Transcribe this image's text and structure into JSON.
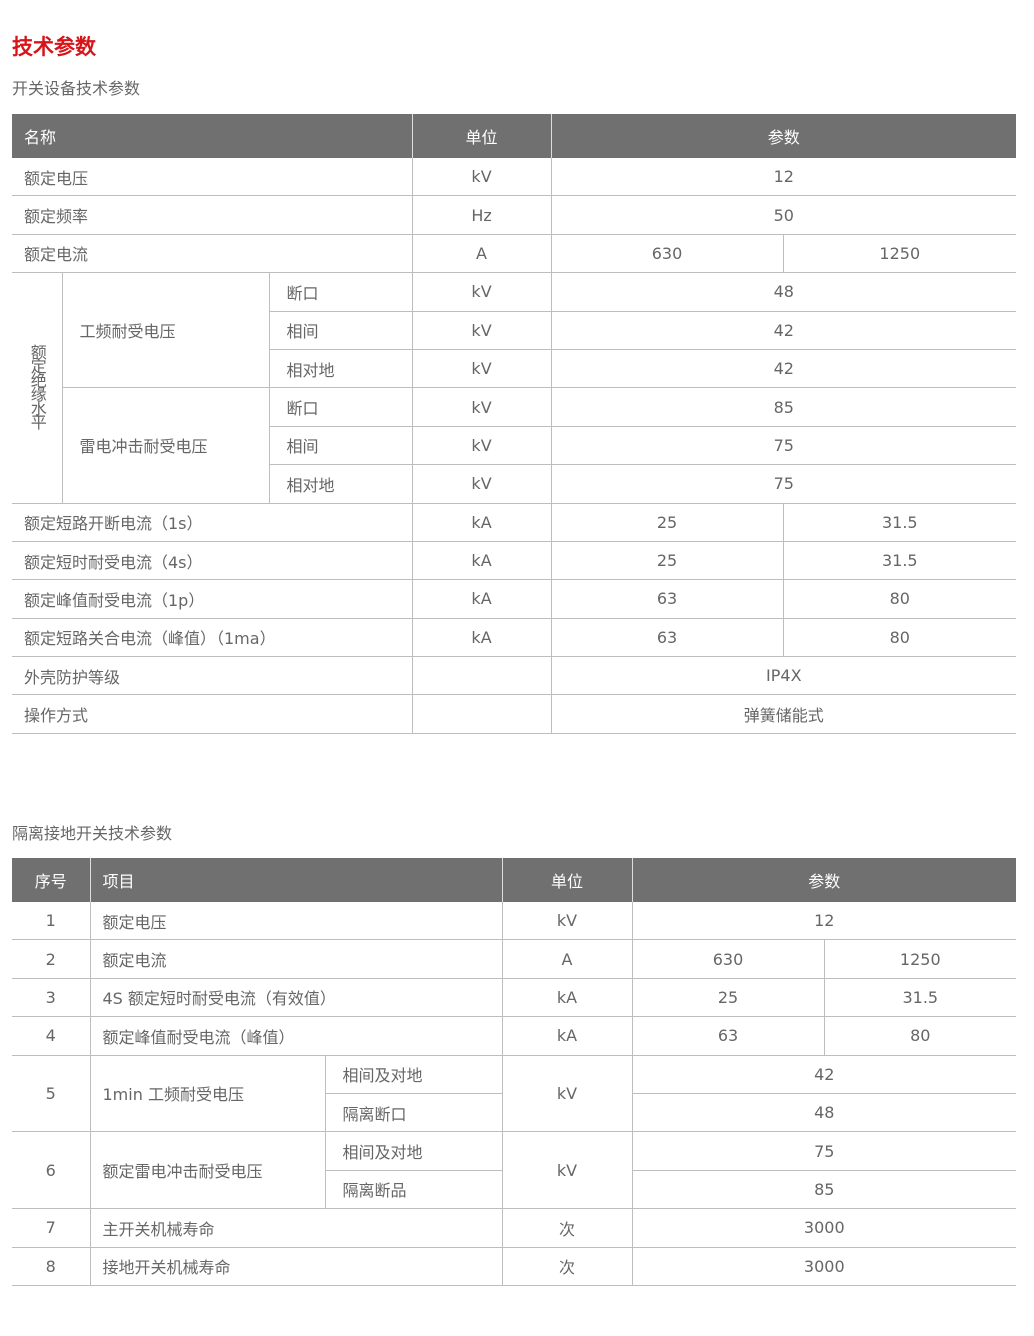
{
  "title": "技术参数",
  "t1": {
    "caption": "开关设备技术参数",
    "headers": [
      "名称",
      "单位",
      "参数"
    ],
    "rows": [
      {
        "name": "额定电压",
        "unit": "kV",
        "v": "12"
      },
      {
        "name": "额定频率",
        "unit": "Hz",
        "v": "50"
      },
      {
        "name": "额定电流",
        "unit": "A",
        "v1": "630",
        "v2": "1250"
      }
    ],
    "ins": {
      "group": "额定绝缘水平",
      "pf": "工频耐受电压",
      "li": "雷电冲击耐受电压",
      "rows": [
        {
          "sub": "断口",
          "unit": "kV",
          "v": "48"
        },
        {
          "sub": "相间",
          "unit": "kV",
          "v": "42"
        },
        {
          "sub": "相对地",
          "unit": "kV",
          "v": "42"
        },
        {
          "sub": "断口",
          "unit": "kV",
          "v": "85"
        },
        {
          "sub": "相间",
          "unit": "kV",
          "v": "75"
        },
        {
          "sub": "相对地",
          "unit": "kV",
          "v": "75"
        }
      ]
    },
    "rows2": [
      {
        "name": "额定短路开断电流（1s）",
        "unit": "kA",
        "v1": "25",
        "v2": "31.5"
      },
      {
        "name": "额定短时耐受电流（4s）",
        "unit": "kA",
        "v1": "25",
        "v2": "31.5"
      },
      {
        "name": "额定峰值耐受电流（1p）",
        "unit": "kA",
        "v1": "63",
        "v2": "80"
      },
      {
        "name": "额定短路关合电流（峰值）（1ma）",
        "unit": "kA",
        "v1": "63",
        "v2": "80"
      },
      {
        "name": "外壳防护等级",
        "unit": "",
        "v": "IP4X"
      },
      {
        "name": "操作方式",
        "unit": "",
        "v": "弹簧储能式"
      }
    ]
  },
  "t2": {
    "caption": "隔离接地开关技术参数",
    "headers": [
      "序号",
      "项目",
      "单位",
      "参数"
    ],
    "rows": [
      {
        "no": "1",
        "item": "额定电压",
        "unit": "kV",
        "v": "12"
      },
      {
        "no": "2",
        "item": "额定电流",
        "unit": "A",
        "v1": "630",
        "v2": "1250"
      },
      {
        "no": "3",
        "item": "4S 额定短时耐受电流（有效值）",
        "unit": "kA",
        "v1": "25",
        "v2": "31.5"
      },
      {
        "no": "4",
        "item": "额定峰值耐受电流（峰值）",
        "unit": "kA",
        "v1": "63",
        "v2": "80"
      },
      {
        "no": "5",
        "item": "1min 工频耐受电压",
        "unit": "kV",
        "s1": "相间及对地",
        "a": "42",
        "s2": "隔离断口",
        "b": "48"
      },
      {
        "no": "6",
        "item": "额定雷电冲击耐受电压",
        "unit": "kV",
        "s1": "相间及对地",
        "a": "75",
        "s2": "隔离断品",
        "b": "85"
      },
      {
        "no": "7",
        "item": "主开关机械寿命",
        "unit": "次",
        "v": "3000"
      },
      {
        "no": "8",
        "item": "接地开关机械寿命",
        "unit": "次",
        "v": "3000"
      }
    ]
  }
}
